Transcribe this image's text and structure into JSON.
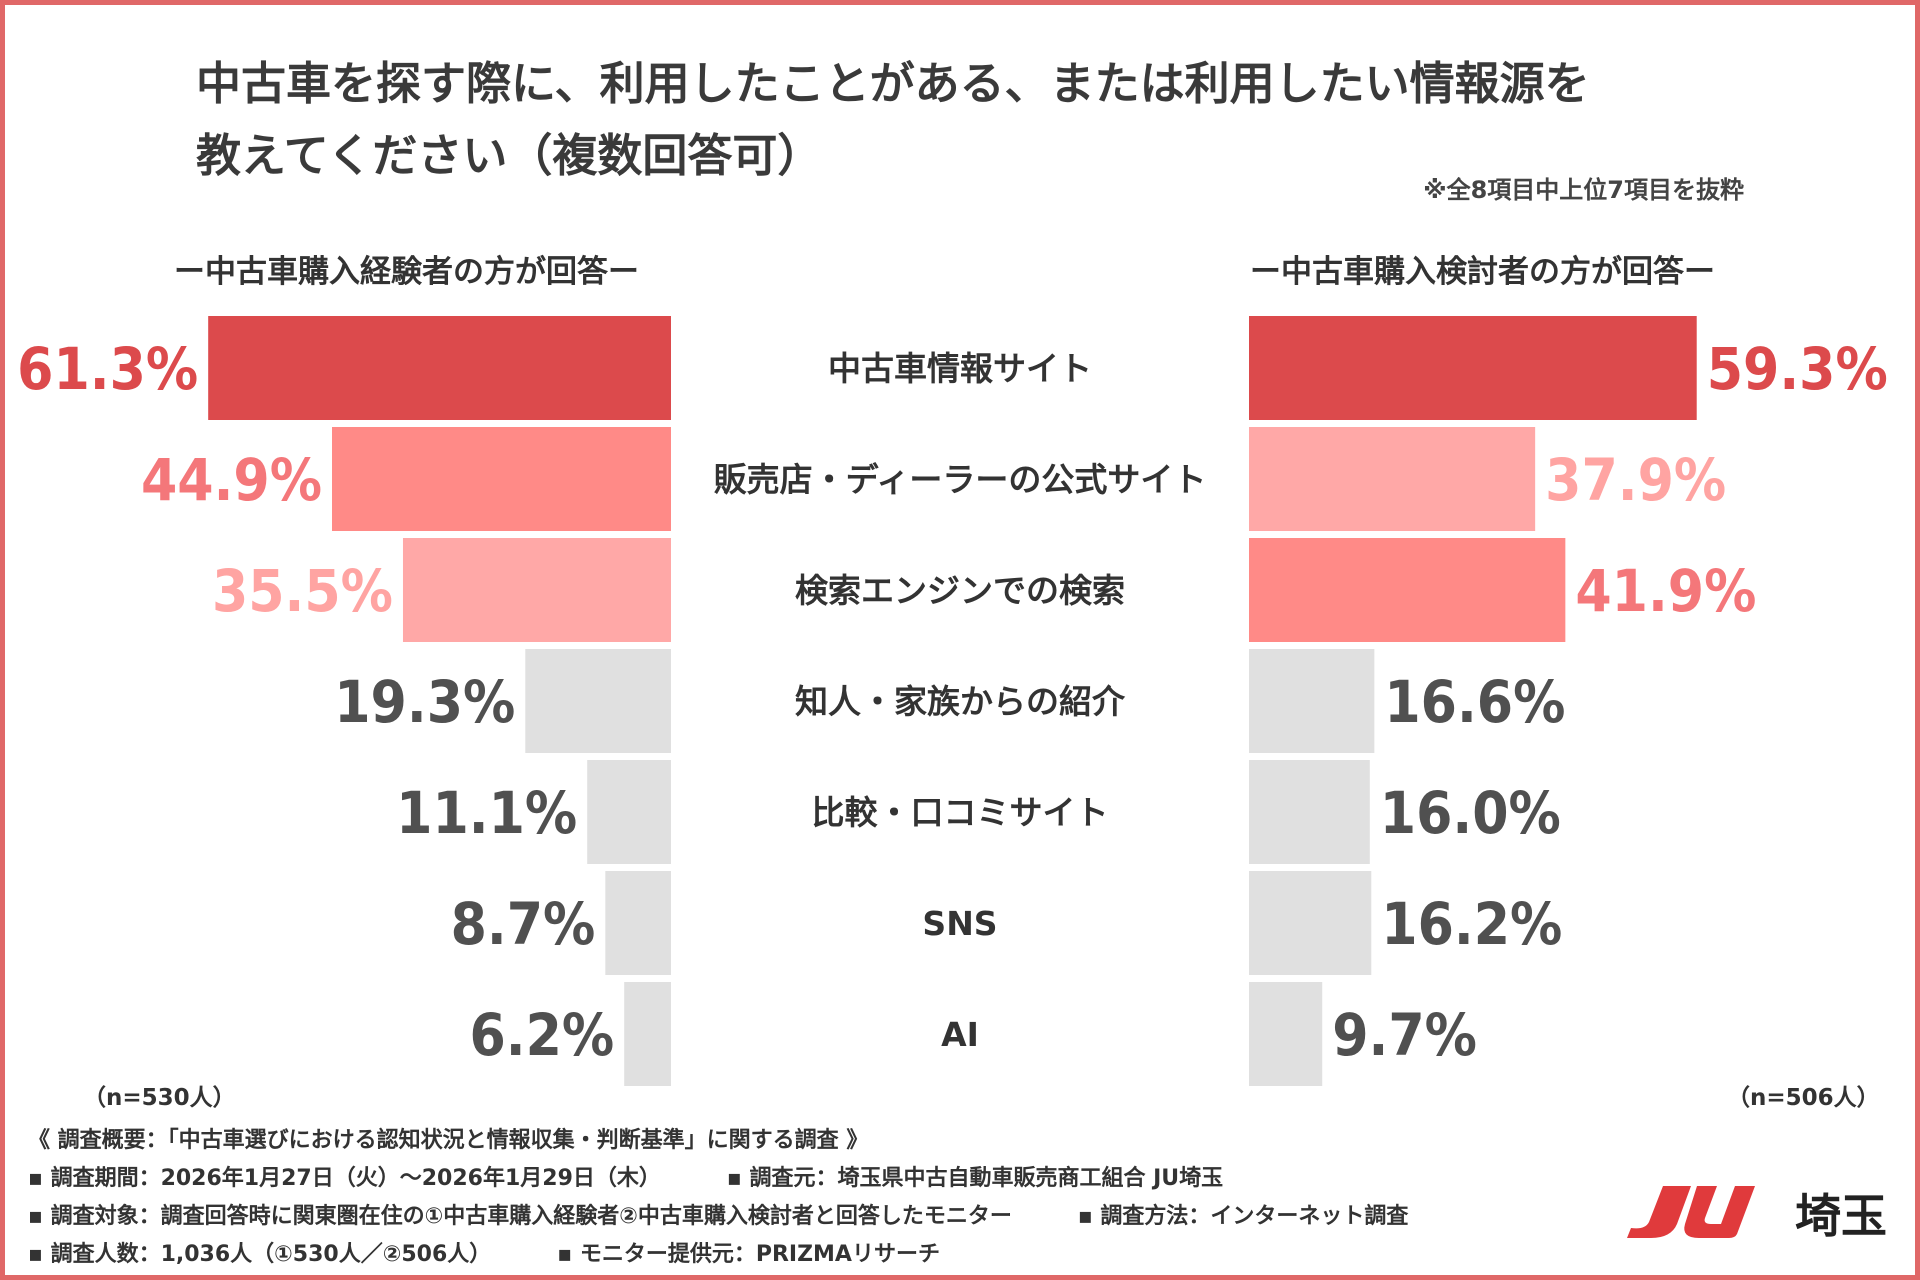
{
  "header": {
    "title_line1": "中古車を探す際に、利用したことがある、または利用したい情報源を",
    "title_line2": "教えてください（複数回答可）",
    "note": "※全8項目中上位7項目を抜粋"
  },
  "chart_data": {
    "type": "bar",
    "categories": [
      "中古車情報サイト",
      "販売店・ディーラーの公式サイト",
      "検索エンジンでの検索",
      "知人・家族からの紹介",
      "比較・口コミサイト",
      "SNS",
      "AI"
    ],
    "series": [
      {
        "name": "ー中古車購入経験者の方が回答ー",
        "values": [
          61.3,
          44.9,
          35.5,
          19.3,
          11.1,
          8.7,
          6.2
        ],
        "labels": [
          "61.3%",
          "44.9%",
          "35.5%",
          "19.3%",
          "11.1%",
          "8.7%",
          "6.2%"
        ],
        "n_label": "（n=530人）"
      },
      {
        "name": "ー中古車購入検討者の方が回答ー",
        "values": [
          59.3,
          37.9,
          41.9,
          16.6,
          16.0,
          16.2,
          9.7
        ],
        "labels": [
          "59.3%",
          "37.9%",
          "41.9%",
          "16.6%",
          "16.0%",
          "16.2%",
          "9.7%"
        ],
        "n_label": "（n=506人）"
      }
    ],
    "rank_colors": {
      "rank1_bar": "#dc4a4c",
      "rank2_bar": "#ff8a87",
      "rank3_bar": "#ffa8a7",
      "other_bar": "#e0e0e0",
      "rank1_text": "#dc4a4c",
      "rank2_text": "#f4777a",
      "rank3_text": "#ffa4a2",
      "other_text": "#505050"
    }
  },
  "footer": {
    "line1": "《 調査概要：「中古車選びにおける認知状況と情報収集・判断基準」に関する調査 》",
    "line2a": "▪ 調査期間：2026年1月27日（火）〜2026年1月29日（木）",
    "line2b": "▪ 調査元：埼玉県中古自動車販売商工組合 JU埼玉",
    "line3a": "▪ 調査対象：調査回答時に関東圏在住の①中古車購入経験者②中古車購入検討者と回答したモニター",
    "line3b": "▪ 調査方法：インターネット調査",
    "line4a": "▪ 調査人数：1,036人（①530人／②506人）",
    "line4b": "▪ モニター提供元：PRIZMAリサーチ"
  },
  "logo": {
    "mark": "JU",
    "text": "埼玉",
    "color": "#e03a3c"
  }
}
